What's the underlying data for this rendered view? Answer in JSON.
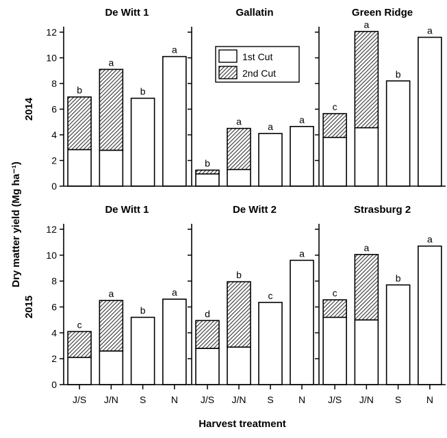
{
  "chart_data": {
    "type": "bar",
    "stacked": true,
    "ylabel": "Dry matter yield (Mg ha⁻¹)",
    "xlabel": "Harvest treatment",
    "ylim": [
      0,
      12
    ],
    "yticks": [
      0,
      2,
      4,
      6,
      8,
      10,
      12
    ],
    "categories": [
      "J/S",
      "J/N",
      "S",
      "N"
    ],
    "legend": {
      "placement": "inside Gallatin 2014 panel, top",
      "entries": [
        {
          "name": "1st Cut",
          "fill": "#ffffff"
        },
        {
          "name": "2nd Cut",
          "fill": "hatched"
        }
      ]
    },
    "rows": [
      {
        "year_label": "2014",
        "panels": [
          {
            "title": "De Witt 1",
            "first_cut": [
              2.85,
              2.8,
              6.85,
              10.1
            ],
            "total": [
              6.95,
              9.1,
              6.85,
              10.1
            ],
            "letters": [
              "b",
              "a",
              "b",
              "a"
            ]
          },
          {
            "title": "Gallatin",
            "first_cut": [
              0.95,
              1.3,
              4.1,
              4.65
            ],
            "total": [
              1.25,
              4.5,
              4.1,
              4.65
            ],
            "letters": [
              "b",
              "a",
              "a",
              "a"
            ]
          },
          {
            "title": "Green Ridge",
            "first_cut": [
              3.8,
              4.55,
              8.2,
              11.6
            ],
            "total": [
              5.65,
              12.05,
              8.2,
              11.6
            ],
            "letters": [
              "c",
              "a",
              "b",
              "a"
            ]
          }
        ]
      },
      {
        "year_label": "2015",
        "panels": [
          {
            "title": "De Witt 1",
            "first_cut": [
              2.1,
              2.6,
              5.2,
              6.6
            ],
            "total": [
              4.1,
              6.5,
              5.2,
              6.6
            ],
            "letters": [
              "c",
              "a",
              "b",
              "a"
            ]
          },
          {
            "title": "De Witt 2",
            "first_cut": [
              2.8,
              2.9,
              6.35,
              9.6
            ],
            "total": [
              4.95,
              7.95,
              6.35,
              9.6
            ],
            "letters": [
              "d",
              "b",
              "c",
              "a"
            ]
          },
          {
            "title": "Strasburg 2",
            "first_cut": [
              5.2,
              5.0,
              7.7,
              10.7
            ],
            "total": [
              6.55,
              10.05,
              7.7,
              10.7
            ],
            "letters": [
              "c",
              "a",
              "b",
              "a"
            ]
          }
        ]
      }
    ]
  }
}
